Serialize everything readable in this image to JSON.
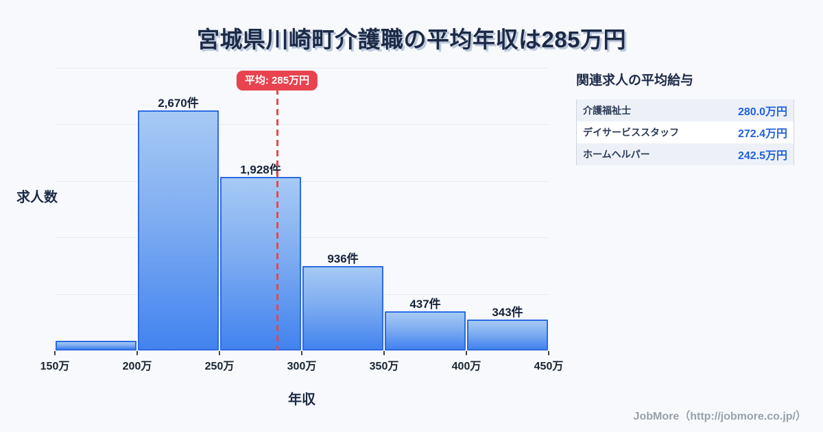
{
  "page": {
    "background": "#f7f9fc",
    "title": "宮城県川崎町介護職の平均年収は285万円"
  },
  "chart_data": {
    "type": "bar",
    "subtype": "histogram",
    "title": "宮城県川崎町介護職の平均年収は285万円",
    "xlabel": "年収",
    "ylabel": "求人数",
    "unit": "件",
    "bin_edges_man_yen": [
      150,
      200,
      250,
      300,
      350,
      400,
      450
    ],
    "x_tick_labels": [
      "150万",
      "200万",
      "250万",
      "300万",
      "350万",
      "400万",
      "450万"
    ],
    "values": [
      110,
      2670,
      1928,
      936,
      437,
      343
    ],
    "value_labels": [
      "",
      "2,670件",
      "1,928件",
      "936件",
      "437件",
      "343件"
    ],
    "average": {
      "value_man_yen": 285,
      "label": "平均: 285万円"
    },
    "ylim": [
      0,
      3160
    ],
    "gridline_count": 5,
    "grid_on": true,
    "colors": {
      "bar_fill_top": "#a7caf5",
      "bar_fill_bottom": "#4283ef",
      "bar_border": "#2b6ae3",
      "average_line": "#e5484d",
      "average_badge": "#e8434e",
      "gridline": "#e7ecf3",
      "label_text": "#16213a"
    }
  },
  "panel": {
    "title": "関連求人の平均給与",
    "value_color": "#2160dd",
    "rows": [
      {
        "label": "介護福祉士",
        "value": "280.0万円"
      },
      {
        "label": "デイサービススタッフ",
        "value": "272.4万円"
      },
      {
        "label": "ホームヘルパー",
        "value": "242.5万円"
      }
    ]
  },
  "footer": {
    "credit": "JobMore（http://jobmore.co.jp/）"
  }
}
